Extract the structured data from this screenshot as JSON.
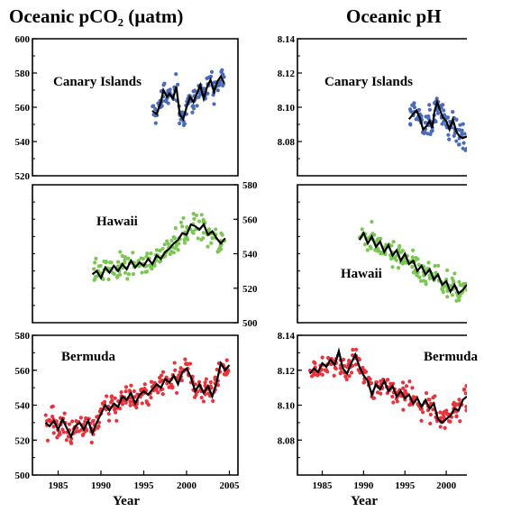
{
  "titles": {
    "left": "Oceanic  pCO₂ (µatm)",
    "right": "Oceanic pH"
  },
  "chart_data": [
    {
      "type": "scatter",
      "panel": "pco2-canary",
      "label": "Canary Islands",
      "color": "#4a6bb8",
      "xlim": [
        1982,
        2006
      ],
      "ylim": [
        520,
        600
      ],
      "y_ticks": [
        520,
        540,
        560,
        580,
        600
      ],
      "y_axis_side": "left",
      "x_ticks": [],
      "trend": [
        [
          1996.0,
          558
        ],
        [
          1996.5,
          556
        ],
        [
          1997.0,
          563
        ],
        [
          1997.3,
          570
        ],
        [
          1997.7,
          566
        ],
        [
          1998.0,
          568
        ],
        [
          1998.4,
          565
        ],
        [
          1998.8,
          572
        ],
        [
          1999.2,
          556
        ],
        [
          1999.6,
          553
        ],
        [
          2000.0,
          560
        ],
        [
          2000.4,
          566
        ],
        [
          2000.8,
          563
        ],
        [
          2001.2,
          568
        ],
        [
          2001.6,
          573
        ],
        [
          2002.0,
          565
        ],
        [
          2002.4,
          572
        ],
        [
          2002.8,
          576
        ],
        [
          2003.2,
          569
        ],
        [
          2003.6,
          575
        ],
        [
          2004.0,
          578
        ],
        [
          2004.4,
          574
        ]
      ]
    },
    {
      "type": "scatter",
      "panel": "pco2-hawaii",
      "label": "Hawaii",
      "color": "#7cc653",
      "xlim": [
        1982,
        2006
      ],
      "ylim": [
        500,
        580
      ],
      "y_ticks": [
        500,
        520,
        540,
        560,
        580
      ],
      "y_axis_side": "right",
      "x_ticks": [],
      "trend": [
        [
          1989.0,
          528
        ],
        [
          1989.5,
          530
        ],
        [
          1990.0,
          526
        ],
        [
          1990.5,
          532
        ],
        [
          1991.0,
          529
        ],
        [
          1991.5,
          533
        ],
        [
          1992.0,
          530
        ],
        [
          1992.5,
          534
        ],
        [
          1993.0,
          531
        ],
        [
          1993.5,
          536
        ],
        [
          1994.0,
          532
        ],
        [
          1994.5,
          535
        ],
        [
          1995.0,
          533
        ],
        [
          1995.5,
          537
        ],
        [
          1996.0,
          534
        ],
        [
          1996.5,
          539
        ],
        [
          1997.0,
          537
        ],
        [
          1997.5,
          541
        ],
        [
          1998.0,
          543
        ],
        [
          1998.5,
          546
        ],
        [
          1999.0,
          548
        ],
        [
          1999.5,
          552
        ],
        [
          2000.0,
          551
        ],
        [
          2000.5,
          557
        ],
        [
          2001.0,
          556
        ],
        [
          2001.5,
          554
        ],
        [
          2002.0,
          557
        ],
        [
          2002.5,
          551
        ],
        [
          2003.0,
          553
        ],
        [
          2003.5,
          549
        ],
        [
          2004.0,
          546
        ],
        [
          2004.5,
          549
        ]
      ]
    },
    {
      "type": "scatter",
      "panel": "pco2-bermuda",
      "label": "Bermuda",
      "color": "#e8333d",
      "xlim": [
        1982,
        2006
      ],
      "ylim": [
        500,
        580
      ],
      "y_ticks": [
        500,
        520,
        540,
        560,
        580
      ],
      "y_axis_side": "left",
      "x_ticks": [
        1985,
        1990,
        1995,
        2000,
        2005
      ],
      "xlabel": "Year",
      "trend": [
        [
          1983.5,
          530
        ],
        [
          1984.0,
          528
        ],
        [
          1984.5,
          531
        ],
        [
          1985.0,
          526
        ],
        [
          1985.5,
          532
        ],
        [
          1986.0,
          527
        ],
        [
          1986.5,
          522
        ],
        [
          1987.0,
          528
        ],
        [
          1987.5,
          530
        ],
        [
          1988.0,
          526
        ],
        [
          1988.5,
          531
        ],
        [
          1989.0,
          524
        ],
        [
          1989.5,
          530
        ],
        [
          1990.0,
          535
        ],
        [
          1990.5,
          540
        ],
        [
          1991.0,
          537
        ],
        [
          1991.5,
          541
        ],
        [
          1992.0,
          539
        ],
        [
          1992.5,
          545
        ],
        [
          1993.0,
          543
        ],
        [
          1993.5,
          547
        ],
        [
          1994.0,
          541
        ],
        [
          1994.5,
          546
        ],
        [
          1995.0,
          548
        ],
        [
          1995.5,
          546
        ],
        [
          1996.0,
          549
        ],
        [
          1996.5,
          552
        ],
        [
          1997.0,
          550
        ],
        [
          1997.5,
          555
        ],
        [
          1998.0,
          553
        ],
        [
          1998.5,
          557
        ],
        [
          1999.0,
          552
        ],
        [
          1999.5,
          559
        ],
        [
          2000.0,
          561
        ],
        [
          2000.5,
          556
        ],
        [
          2001.0,
          548
        ],
        [
          2001.5,
          552
        ],
        [
          2002.0,
          547
        ],
        [
          2002.5,
          551
        ],
        [
          2003.0,
          545
        ],
        [
          2003.5,
          553
        ],
        [
          2004.0,
          564
        ],
        [
          2004.5,
          560
        ],
        [
          2005.0,
          563
        ]
      ]
    },
    {
      "type": "scatter",
      "panel": "ph-canary",
      "label": "Canary Islands",
      "color": "#4a6bb8",
      "xlim": [
        1982,
        2002.5
      ],
      "ylim": [
        8.06,
        8.14
      ],
      "y_ticks": [
        8.08,
        8.1,
        8.12,
        8.14
      ],
      "y_axis_side": "left",
      "x_ticks": [],
      "trend": [
        [
          1995.5,
          8.093
        ],
        [
          1996.0,
          8.096
        ],
        [
          1996.4,
          8.098
        ],
        [
          1996.8,
          8.094
        ],
        [
          1997.2,
          8.087
        ],
        [
          1997.6,
          8.089
        ],
        [
          1998.0,
          8.092
        ],
        [
          1998.3,
          8.088
        ],
        [
          1998.6,
          8.098
        ],
        [
          1998.9,
          8.103
        ],
        [
          1999.2,
          8.099
        ],
        [
          1999.6,
          8.094
        ],
        [
          2000.0,
          8.092
        ],
        [
          2000.4,
          8.087
        ],
        [
          2000.8,
          8.093
        ],
        [
          2001.2,
          8.086
        ],
        [
          2001.6,
          8.083
        ],
        [
          2002.0,
          8.082
        ],
        [
          2002.5,
          8.083
        ]
      ]
    },
    {
      "type": "scatter",
      "panel": "ph-hawaii",
      "label": "Hawaii",
      "color": "#7cc653",
      "xlim": [
        1982,
        2002.5
      ],
      "ylim": [
        8.06,
        8.14
      ],
      "y_ticks": [],
      "y_axis_side": "left",
      "x_ticks": [],
      "trend": [
        [
          1989.5,
          8.108
        ],
        [
          1990.0,
          8.112
        ],
        [
          1990.5,
          8.106
        ],
        [
          1991.0,
          8.11
        ],
        [
          1991.5,
          8.104
        ],
        [
          1992.0,
          8.107
        ],
        [
          1992.5,
          8.101
        ],
        [
          1993.0,
          8.105
        ],
        [
          1993.5,
          8.099
        ],
        [
          1994.0,
          8.102
        ],
        [
          1994.5,
          8.096
        ],
        [
          1995.0,
          8.1
        ],
        [
          1995.5,
          8.094
        ],
        [
          1996.0,
          8.096
        ],
        [
          1996.5,
          8.09
        ],
        [
          1997.0,
          8.093
        ],
        [
          1997.5,
          8.088
        ],
        [
          1998.0,
          8.091
        ],
        [
          1998.5,
          8.085
        ],
        [
          1999.0,
          8.088
        ],
        [
          1999.5,
          8.082
        ],
        [
          2000.0,
          8.084
        ],
        [
          2000.5,
          8.078
        ],
        [
          2001.0,
          8.082
        ],
        [
          2001.5,
          8.077
        ],
        [
          2002.0,
          8.079
        ],
        [
          2002.5,
          8.082
        ]
      ]
    },
    {
      "type": "scatter",
      "panel": "ph-bermuda",
      "label": "Bermuda",
      "color": "#e8333d",
      "xlim": [
        1982,
        2002.5
      ],
      "ylim": [
        8.06,
        8.14
      ],
      "y_ticks": [
        8.08,
        8.1,
        8.12,
        8.14
      ],
      "y_axis_side": "left",
      "x_ticks": [
        1985,
        1990,
        1995,
        2000
      ],
      "xlabel": "Year",
      "trend": [
        [
          1983.5,
          8.118
        ],
        [
          1984.0,
          8.121
        ],
        [
          1984.5,
          8.119
        ],
        [
          1985.0,
          8.124
        ],
        [
          1985.5,
          8.122
        ],
        [
          1986.0,
          8.126
        ],
        [
          1986.5,
          8.123
        ],
        [
          1987.0,
          8.131
        ],
        [
          1987.5,
          8.121
        ],
        [
          1988.0,
          8.118
        ],
        [
          1988.5,
          8.124
        ],
        [
          1989.0,
          8.129
        ],
        [
          1989.5,
          8.122
        ],
        [
          1990.0,
          8.117
        ],
        [
          1990.5,
          8.114
        ],
        [
          1991.0,
          8.106
        ],
        [
          1991.5,
          8.112
        ],
        [
          1992.0,
          8.109
        ],
        [
          1992.5,
          8.114
        ],
        [
          1993.0,
          8.108
        ],
        [
          1993.5,
          8.111
        ],
        [
          1994.0,
          8.105
        ],
        [
          1994.5,
          8.108
        ],
        [
          1995.0,
          8.104
        ],
        [
          1995.5,
          8.106
        ],
        [
          1996.0,
          8.101
        ],
        [
          1996.5,
          8.104
        ],
        [
          1997.0,
          8.099
        ],
        [
          1997.5,
          8.103
        ],
        [
          1998.0,
          8.098
        ],
        [
          1998.5,
          8.101
        ],
        [
          1999.0,
          8.092
        ],
        [
          1999.5,
          8.09
        ],
        [
          2000.0,
          8.092
        ],
        [
          2000.5,
          8.094
        ],
        [
          2001.0,
          8.098
        ],
        [
          2001.5,
          8.097
        ],
        [
          2002.0,
          8.103
        ],
        [
          2002.5,
          8.105
        ]
      ]
    }
  ]
}
